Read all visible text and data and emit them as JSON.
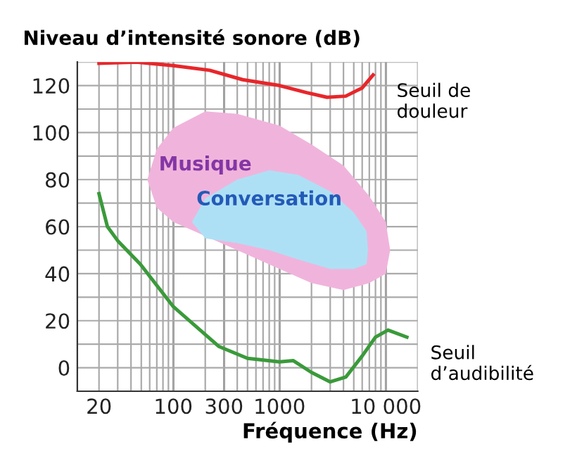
{
  "chart_data": {
    "type": "line",
    "ylabel": "Niveau d’intensité sonore (dB)",
    "xlabel": "Fréquence (Hz)",
    "log": "x",
    "xlim": [
      12.5,
      20000
    ],
    "ylim": [
      -10,
      130
    ],
    "xticks": [
      20,
      100,
      300,
      1000,
      {
        "value": 10000,
        "label": "10 000"
      }
    ],
    "yticks": [
      0,
      20,
      40,
      60,
      80,
      100,
      120
    ],
    "grid": true,
    "legend": false,
    "series": [
      {
        "name": "Musique",
        "type": "area",
        "color": "#f0b4dc",
        "x": [
          57,
          70,
          100,
          200,
          400,
          1000,
          2000,
          4000,
          7000,
          10000,
          11000,
          10000,
          7000,
          4000,
          2000,
          1000,
          400,
          200,
          100,
          70
        ],
        "values": [
          80,
          93,
          102,
          109,
          108,
          103,
          95,
          86,
          73,
          62,
          50,
          40,
          36,
          33,
          36,
          42,
          50,
          56,
          62,
          68
        ]
      },
      {
        "name": "Conversation",
        "type": "area",
        "color": "#aee0f5",
        "x": [
          150,
          200,
          400,
          800,
          1500,
          3000,
          5000,
          6600,
          6800,
          6600,
          5000,
          3000,
          1500,
          800,
          400,
          200
        ],
        "values": [
          62,
          72,
          80,
          84,
          82,
          75,
          66,
          58,
          50,
          44,
          42,
          42,
          46,
          50,
          53,
          55
        ]
      },
      {
        "name": "Seuil de\ndouleur",
        "color": "#e8262a",
        "x": [
          20,
          45,
          100,
          220,
          450,
          1000,
          1800,
          2800,
          4200,
          6000,
          7600
        ],
        "values": [
          129.5,
          130,
          128.5,
          126.5,
          122.5,
          120,
          117,
          115,
          115.5,
          119,
          124.5
        ]
      },
      {
        "name": "Seuil\nd’audibilité",
        "color": "#3a9a3a",
        "x": [
          20,
          24,
          30,
          49,
          100,
          270,
          500,
          1000,
          1350,
          2000,
          3000,
          4200,
          6000,
          8000,
          10500,
          15800
        ],
        "values": [
          74,
          60,
          54,
          44,
          26,
          9,
          4,
          2.5,
          3,
          -2,
          -6,
          -4,
          5,
          13,
          16,
          13
        ]
      }
    ]
  }
}
